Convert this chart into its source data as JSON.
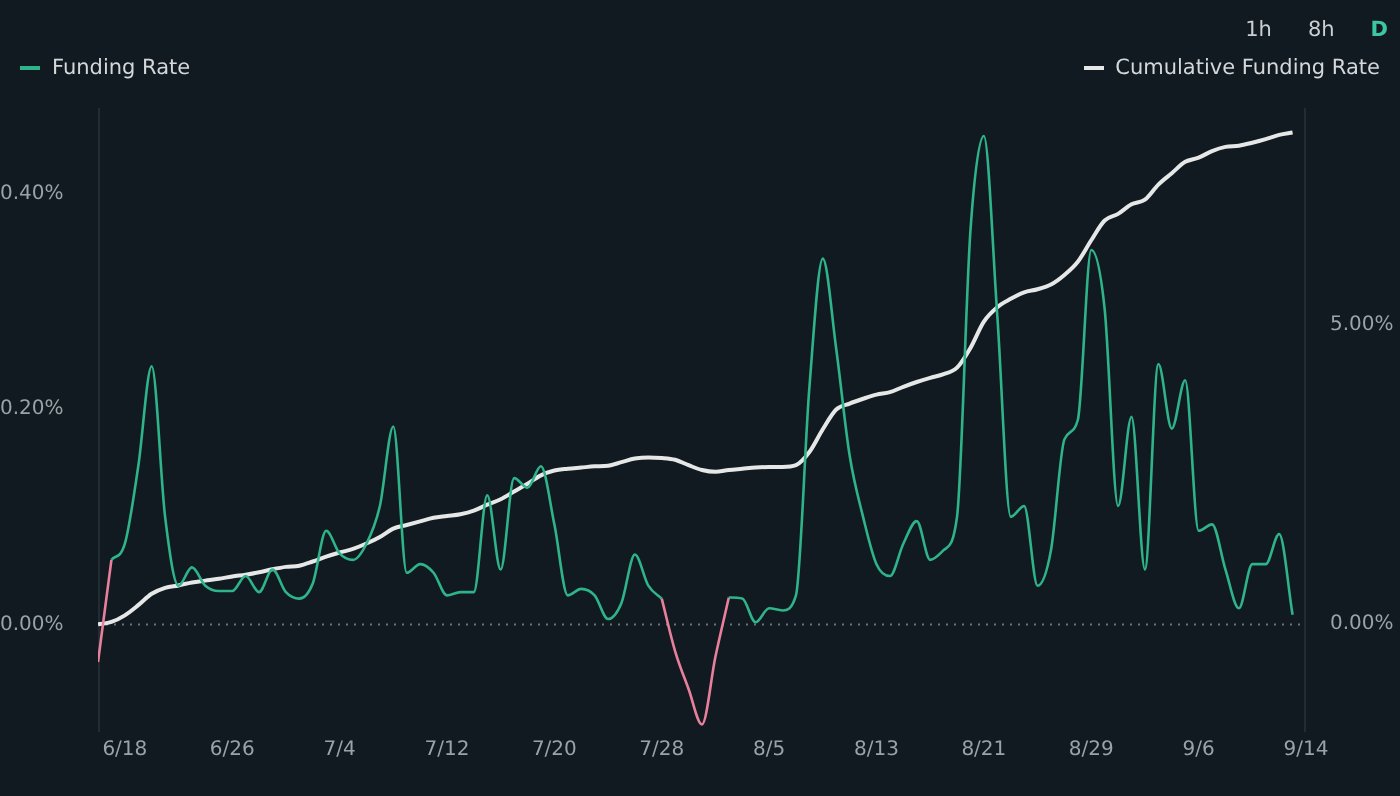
{
  "chart_data": {
    "type": "line",
    "annotations": [
      "1h",
      "8h",
      "D"
    ],
    "x": [
      "--06-16",
      "--06-17",
      "--06-18",
      "--06-19",
      "--06-20",
      "--06-21",
      "--06-22",
      "--06-23",
      "--06-24",
      "--06-25",
      "--06-26",
      "--06-27",
      "--06-28",
      "--06-29",
      "--06-30",
      "--07-01",
      "--07-02",
      "--07-03",
      "--07-04",
      "--07-05",
      "--07-06",
      "--07-07",
      "--07-08",
      "--07-09",
      "--07-10",
      "--07-11",
      "--07-12",
      "--07-13",
      "--07-14",
      "--07-15",
      "--07-16",
      "--07-17",
      "--07-18",
      "--07-19",
      "--07-20",
      "--07-21",
      "--07-22",
      "--07-23",
      "--07-24",
      "--07-25",
      "--07-26",
      "--07-27",
      "--07-28",
      "--07-29",
      "--07-30",
      "--07-31",
      "--08-01",
      "--08-02",
      "--08-03",
      "--08-04",
      "--08-05",
      "--08-06",
      "--08-07",
      "--08-08",
      "--08-09",
      "--08-10",
      "--08-11",
      "--08-12",
      "--08-13",
      "--08-14",
      "--08-15",
      "--08-16",
      "--08-17",
      "--08-18",
      "--08-19",
      "--08-20",
      "--08-21",
      "--08-22",
      "--08-23",
      "--08-24",
      "--08-25",
      "--08-26",
      "--08-27",
      "--08-28",
      "--08-29",
      "--08-30",
      "--08-31",
      "--09-01",
      "--09-02",
      "--09-03",
      "--09-04",
      "--09-05",
      "--09-06",
      "--09-07",
      "--09-08",
      "--09-09",
      "--09-10",
      "--09-11",
      "--09-12",
      "--09-13"
    ],
    "series": [
      {
        "name": "Funding Rate",
        "color": "#2fb38a",
        "values": [
          null,
          0.06,
          0.075,
          0.147,
          0.24,
          0.1,
          0.036,
          0.053,
          0.036,
          0.031,
          0.031,
          0.045,
          0.03,
          0.051,
          0.03,
          0.024,
          0.038,
          0.087,
          0.066,
          0.06,
          0.075,
          0.11,
          0.184,
          0.048,
          0.056,
          0.048,
          0.027,
          0.03,
          0.03,
          0.12,
          0.051,
          0.136,
          0.127,
          0.147,
          0.093,
          0.027,
          0.033,
          0.027,
          0.005,
          0.02,
          0.065,
          0.036,
          0.024,
          null,
          null,
          null,
          null,
          0.025,
          0.024,
          0.002,
          0.015,
          0.013,
          0.027,
          0.22,
          0.34,
          0.256,
          0.157,
          0.1,
          0.056,
          0.045,
          0.075,
          0.096,
          0.06,
          0.069,
          0.1,
          0.366,
          0.454,
          0.287,
          0.1,
          0.11,
          0.036,
          0.069,
          0.172,
          0.19,
          0.348,
          0.293,
          0.11,
          0.193,
          0.051,
          0.242,
          0.182,
          0.227,
          0.087,
          0.093,
          0.051,
          0.015,
          0.056,
          0.056,
          0.084,
          0.009
        ]
      },
      {
        "color": "#e8809c",
        "values": [
          -0.035,
          0.06,
          null,
          null,
          null,
          null,
          null,
          null,
          null,
          null,
          null,
          null,
          null,
          null,
          null,
          null,
          null,
          null,
          null,
          null,
          null,
          null,
          null,
          null,
          null,
          null,
          null,
          null,
          null,
          null,
          null,
          null,
          null,
          null,
          null,
          null,
          null,
          null,
          null,
          null,
          null,
          null,
          0.024,
          -0.025,
          -0.06,
          -0.093,
          -0.03,
          0.025,
          null,
          null,
          null,
          null,
          null,
          null,
          null,
          null,
          null,
          null,
          null,
          null,
          null,
          null,
          null,
          null,
          null,
          null,
          null,
          null,
          null,
          null,
          null,
          null,
          null,
          null,
          null,
          null,
          null,
          null,
          null,
          null,
          null,
          null,
          null,
          null,
          null,
          null,
          null,
          null,
          null,
          null
        ]
      },
      {
        "name": "Cumulative Funding Rate",
        "color": "#e6e8e8",
        "axis": "y2",
        "values": [
          0,
          0.04,
          0.15,
          0.32,
          0.51,
          0.61,
          0.65,
          0.7,
          0.73,
          0.76,
          0.8,
          0.83,
          0.87,
          0.92,
          0.96,
          0.98,
          1.05,
          1.13,
          1.2,
          1.26,
          1.35,
          1.46,
          1.6,
          1.66,
          1.72,
          1.78,
          1.81,
          1.84,
          1.9,
          2.0,
          2.09,
          2.22,
          2.35,
          2.49,
          2.57,
          2.6,
          2.62,
          2.64,
          2.65,
          2.71,
          2.77,
          2.79,
          2.78,
          2.75,
          2.66,
          2.58,
          2.55,
          2.58,
          2.6,
          2.62,
          2.63,
          2.63,
          2.66,
          2.88,
          3.26,
          3.59,
          3.69,
          3.77,
          3.84,
          3.88,
          3.97,
          4.05,
          4.12,
          4.18,
          4.29,
          4.62,
          5.06,
          5.3,
          5.44,
          5.55,
          5.6,
          5.68,
          5.84,
          6.06,
          6.42,
          6.75,
          6.86,
          7.02,
          7.1,
          7.35,
          7.54,
          7.73,
          7.8,
          7.91,
          7.98,
          8.0,
          8.05,
          8.11,
          8.18,
          8.22
        ]
      }
    ],
    "xlim": [
      "--06-16",
      "--09-14"
    ],
    "xticks": [
      {
        "value": "--06-18",
        "label": "6/18"
      },
      {
        "value": "--06-26",
        "label": "6/26"
      },
      {
        "value": "--07-04",
        "label": "7/4"
      },
      {
        "value": "--07-12",
        "label": "7/12"
      },
      {
        "value": "--07-20",
        "label": "7/20"
      },
      {
        "value": "--07-28",
        "label": "7/28"
      },
      {
        "value": "--08-05",
        "label": "8/5"
      },
      {
        "value": "--08-13",
        "label": "8/13"
      },
      {
        "value": "--08-21",
        "label": "8/21"
      },
      {
        "value": "--08-29",
        "label": "8/29"
      },
      {
        "value": "--09-06",
        "label": "9/6"
      },
      {
        "value": "--09-14",
        "label": "9/14"
      }
    ],
    "ylim": [
      -0.1,
      0.48
    ],
    "yticks": [
      {
        "value": 0,
        "label": "0.00%"
      },
      {
        "value": 0.2,
        "label": "0.20%"
      },
      {
        "value": 0.4,
        "label": "0.40%"
      }
    ],
    "y2lim": [
      -1.8,
      8.63
    ],
    "y2ticks": [
      {
        "value": 0,
        "label": "0.00%"
      },
      {
        "value": 5,
        "label": "5.00%"
      }
    ],
    "ref_lines": [
      {
        "axis": "y",
        "value": 0,
        "color": "#6a7378",
        "line_style": "dotted"
      }
    ],
    "grid": false,
    "legend": "top",
    "marker": "none",
    "line_style": "solid"
  }
}
